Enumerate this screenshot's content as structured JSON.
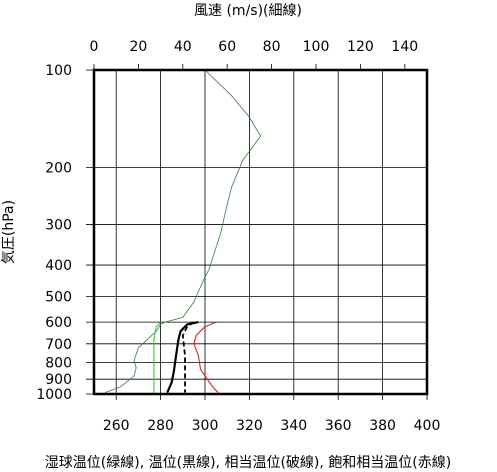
{
  "chart_data": {
    "type": "line",
    "title": "",
    "top_axis": {
      "label": "風速 (m/s)(細線)",
      "range": [
        0,
        150
      ],
      "ticks": [
        0,
        20,
        40,
        60,
        80,
        100,
        120,
        140
      ]
    },
    "bottom_axis": {
      "label": "湿球温位(緑線), 温位(黒線), 相当温位(破線), 飽和相当温位(赤線)",
      "range": [
        250,
        400
      ],
      "ticks": [
        260,
        280,
        300,
        320,
        340,
        360,
        380,
        400
      ]
    },
    "y_axis": {
      "label": "気圧(hPa)",
      "scale": "log",
      "reversed": true,
      "range": [
        100,
        1000
      ],
      "ticks": [
        100,
        200,
        300,
        400,
        500,
        600,
        700,
        800,
        900,
        1000
      ]
    },
    "grid": true,
    "series": [
      {
        "key": "wind",
        "axis": "top",
        "color": "#3a7a3a",
        "style": "thin",
        "points": [
          [
            50,
            100
          ],
          [
            62,
            120
          ],
          [
            70,
            140
          ],
          [
            75,
            160
          ],
          [
            67,
            190
          ],
          [
            62,
            230
          ],
          [
            60,
            260
          ],
          [
            57,
            320
          ],
          [
            54,
            370
          ],
          [
            52,
            410
          ],
          [
            49,
            450
          ],
          [
            45,
            520
          ],
          [
            40,
            580
          ],
          [
            32,
            600
          ],
          [
            30,
            610
          ],
          [
            28,
            640
          ],
          [
            20,
            720
          ],
          [
            18,
            790
          ],
          [
            19,
            830
          ],
          [
            18,
            880
          ],
          [
            12,
            950
          ],
          [
            5,
            990
          ]
        ]
      },
      {
        "key": "wet_bulb_potential_temperature",
        "axis": "bottom",
        "color": "#33cc33",
        "style": "solid",
        "points": [
          [
            280,
            600
          ],
          [
            278,
            620
          ],
          [
            277,
            680
          ],
          [
            277,
            800
          ],
          [
            277,
            900
          ],
          [
            277,
            990
          ]
        ]
      },
      {
        "key": "potential_temperature",
        "axis": "bottom",
        "color": "#000000",
        "style": "bold",
        "points": [
          [
            297,
            600
          ],
          [
            292,
            610
          ],
          [
            289,
            640
          ],
          [
            288,
            680
          ],
          [
            287,
            760
          ],
          [
            286,
            850
          ],
          [
            285,
            920
          ],
          [
            283,
            990
          ]
        ]
      },
      {
        "key": "equivalent_potential_temperature",
        "axis": "bottom",
        "color": "#000000",
        "style": "dashed",
        "points": [
          [
            295,
            600
          ],
          [
            292,
            620
          ],
          [
            290,
            660
          ],
          [
            291,
            760
          ],
          [
            291,
            900
          ],
          [
            291,
            990
          ]
        ]
      },
      {
        "key": "saturated_equivalent_potential_temperature",
        "axis": "bottom",
        "color": "#e02020",
        "style": "solid",
        "points": [
          [
            305,
            600
          ],
          [
            300,
            620
          ],
          [
            296,
            660
          ],
          [
            295,
            700
          ],
          [
            297,
            760
          ],
          [
            298,
            840
          ],
          [
            301,
            900
          ],
          [
            304,
            960
          ],
          [
            306,
            990
          ]
        ]
      }
    ]
  }
}
